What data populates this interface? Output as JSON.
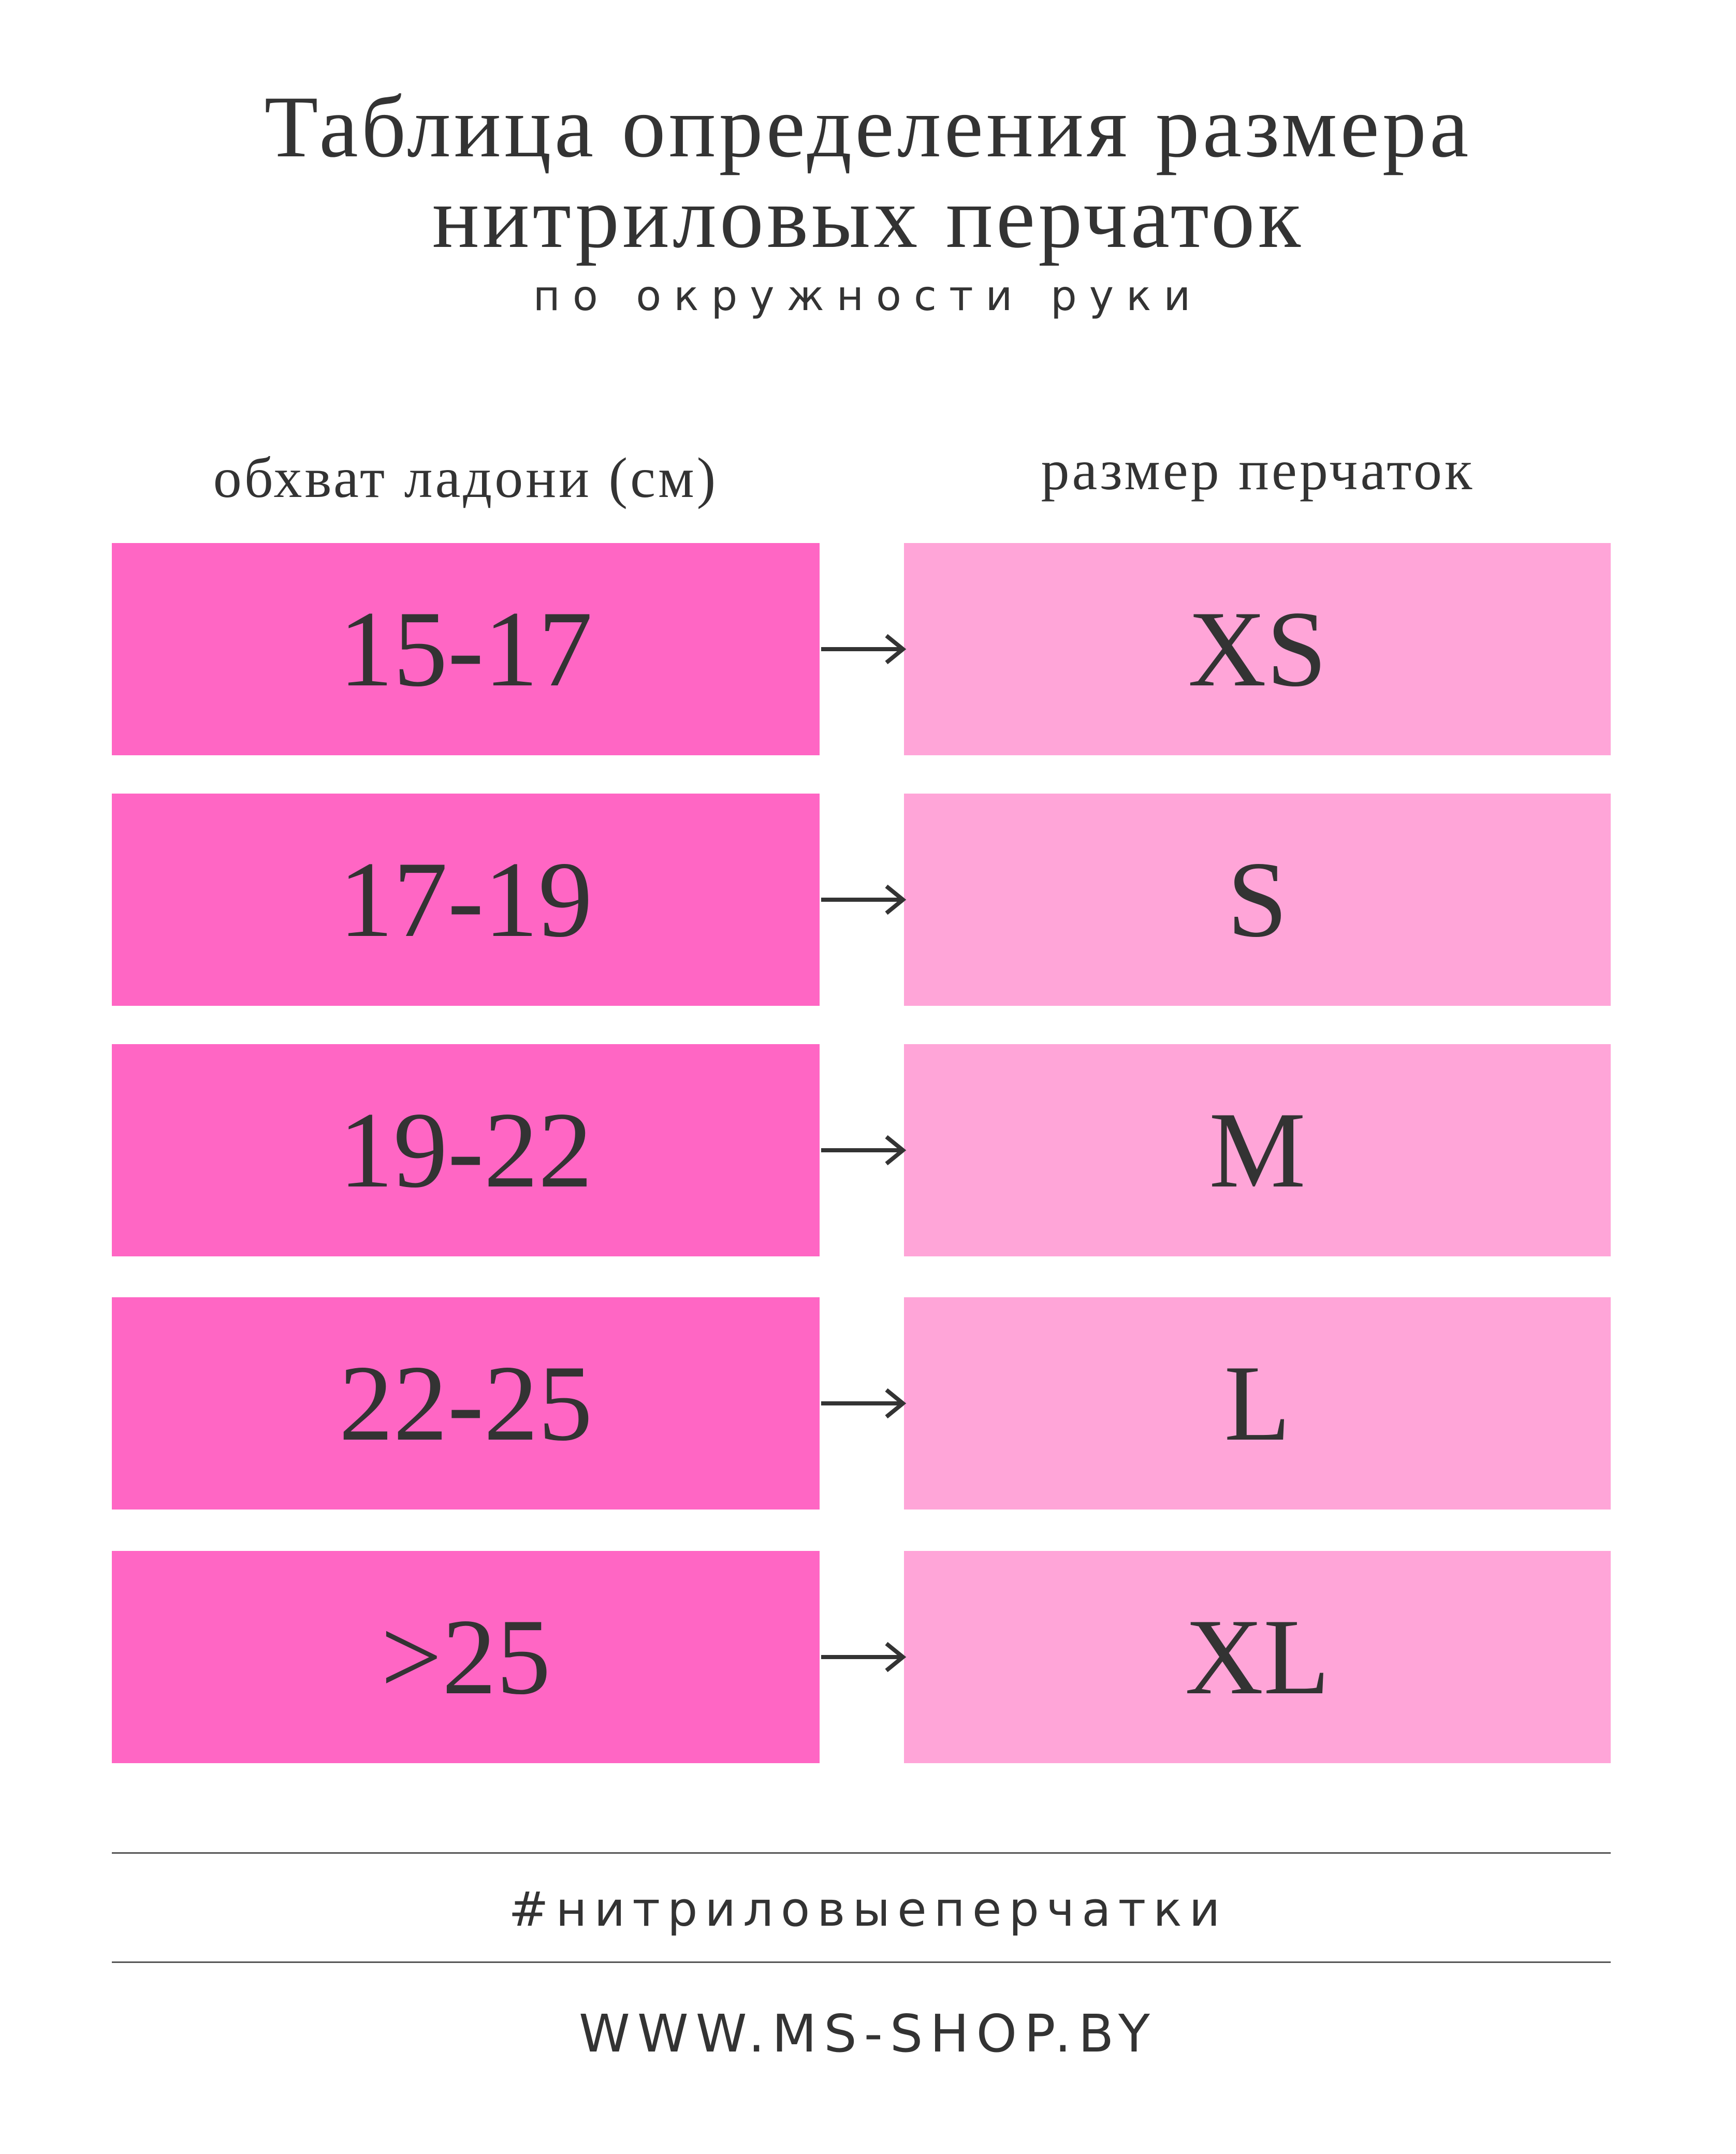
{
  "header": {
    "title_lines": [
      "Таблица определения размера",
      "нитриловых перчаток"
    ],
    "subtitle": "по окружности руки"
  },
  "table": {
    "columns": [
      "обхват ладони (см)",
      "размер перчаток"
    ],
    "rows": [
      [
        "15-17",
        "XS"
      ],
      [
        "17-19",
        "S"
      ],
      [
        "19-22",
        "M"
      ],
      [
        "22-25",
        "L"
      ],
      [
        ">25",
        "XL"
      ]
    ]
  },
  "footer": {
    "hashtag": "#нитриловыеперчатки",
    "website": "WWW.MS-SHOP.BY"
  }
}
